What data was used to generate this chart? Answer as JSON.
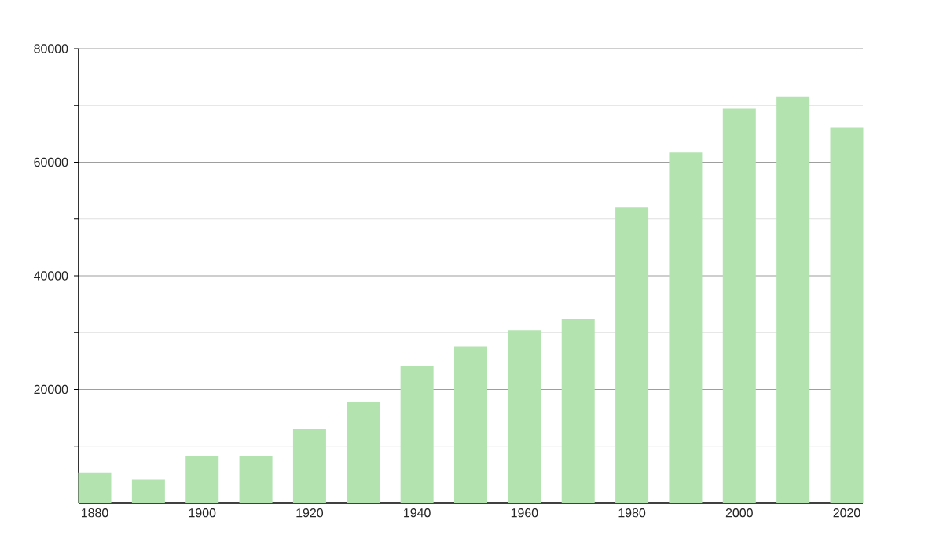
{
  "chart_data": {
    "type": "bar",
    "x": [
      1880,
      1890,
      1900,
      1910,
      1920,
      1930,
      1940,
      1950,
      1960,
      1970,
      1980,
      1990,
      2000,
      2010,
      2020
    ],
    "values": [
      5300,
      4100,
      8300,
      8300,
      13000,
      17800,
      24100,
      27600,
      30400,
      32400,
      52000,
      61700,
      69400,
      71600,
      66100
    ],
    "color": "#b3e4b0",
    "xlim": [
      1877,
      2023
    ],
    "xticks": [
      1880,
      1900,
      1920,
      1940,
      1960,
      1980,
      2000,
      2020
    ],
    "ylim": [
      0,
      80000
    ],
    "yticks": [
      {
        "value": 10000,
        "label": null
      },
      20000,
      {
        "value": 30000,
        "label": null
      },
      40000,
      {
        "value": 50000,
        "label": null
      },
      60000,
      {
        "value": 70000,
        "label": null
      },
      80000
    ],
    "grid": "y"
  }
}
